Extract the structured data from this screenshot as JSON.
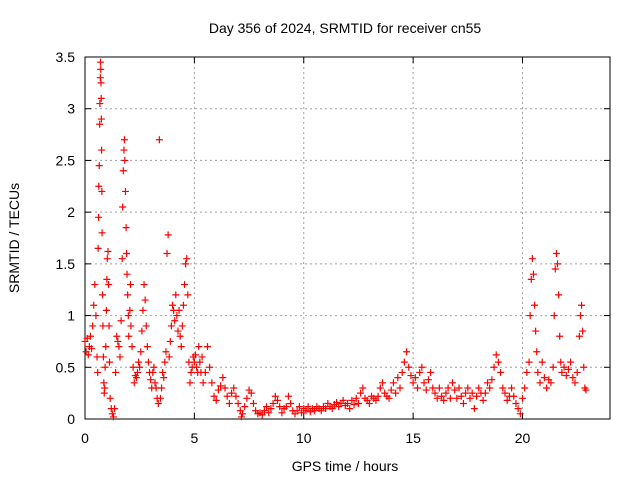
{
  "chart_data": {
    "type": "scatter",
    "title": "Day 356 of 2024, SRMTID for receiver cn55",
    "xlabel": "GPS time / hours",
    "ylabel": "SRMTID / TECUs",
    "xlim": [
      0,
      24
    ],
    "ylim": [
      0,
      3.5
    ],
    "x_ticks": [
      0,
      5,
      10,
      15,
      20
    ],
    "x_tick_labels": [
      "0",
      "5",
      "10",
      "15",
      "20"
    ],
    "y_ticks": [
      0,
      0.5,
      1,
      1.5,
      2,
      2.5,
      3,
      3.5
    ],
    "y_tick_labels": [
      "0",
      "0.5",
      "1",
      "1.5",
      "2",
      "2.5",
      "3",
      "3.5"
    ],
    "grid": true,
    "marker": "+",
    "marker_color": "#ff0000",
    "series": [
      {
        "name": "SRMTID",
        "points": [
          [
            0.0,
            0.75
          ],
          [
            0.05,
            0.65
          ],
          [
            0.1,
            0.78
          ],
          [
            0.15,
            0.62
          ],
          [
            0.2,
            0.7
          ],
          [
            0.25,
            0.8
          ],
          [
            0.3,
            0.68
          ],
          [
            0.35,
            0.9
          ],
          [
            0.4,
            1.1
          ],
          [
            0.45,
            1.3
          ],
          [
            0.5,
            1.0
          ],
          [
            0.55,
            0.6
          ],
          [
            0.58,
            0.45
          ],
          [
            0.6,
            1.65
          ],
          [
            0.62,
            1.95
          ],
          [
            0.63,
            2.25
          ],
          [
            0.65,
            2.45
          ],
          [
            0.67,
            2.85
          ],
          [
            0.68,
            3.05
          ],
          [
            0.7,
            3.3
          ],
          [
            0.71,
            3.45
          ],
          [
            0.72,
            3.38
          ],
          [
            0.73,
            3.25
          ],
          [
            0.74,
            3.1
          ],
          [
            0.75,
            2.9
          ],
          [
            0.76,
            2.6
          ],
          [
            0.77,
            2.2
          ],
          [
            0.78,
            1.8
          ],
          [
            0.8,
            1.2
          ],
          [
            0.82,
            0.9
          ],
          [
            0.84,
            0.6
          ],
          [
            0.86,
            0.35
          ],
          [
            0.88,
            0.25
          ],
          [
            0.9,
            0.3
          ],
          [
            0.92,
            0.5
          ],
          [
            0.95,
            0.7
          ],
          [
            0.98,
            1.05
          ],
          [
            1.0,
            1.35
          ],
          [
            1.02,
            1.55
          ],
          [
            1.05,
            1.62
          ],
          [
            1.08,
            1.3
          ],
          [
            1.1,
            0.9
          ],
          [
            1.12,
            0.55
          ],
          [
            1.15,
            0.2
          ],
          [
            1.2,
            0.1
          ],
          [
            1.25,
            0.05
          ],
          [
            1.3,
            0.02
          ],
          [
            1.35,
            0.1
          ],
          [
            1.4,
            0.45
          ],
          [
            1.45,
            0.8
          ],
          [
            1.5,
            0.75
          ],
          [
            1.55,
            0.7
          ],
          [
            1.6,
            0.6
          ],
          [
            1.65,
            0.95
          ],
          [
            1.7,
            1.55
          ],
          [
            1.72,
            2.05
          ],
          [
            1.75,
            2.4
          ],
          [
            1.78,
            2.6
          ],
          [
            1.8,
            2.7
          ],
          [
            1.82,
            2.5
          ],
          [
            1.85,
            2.2
          ],
          [
            1.88,
            1.85
          ],
          [
            1.9,
            1.6
          ],
          [
            1.92,
            1.4
          ],
          [
            1.95,
            1.2
          ],
          [
            1.98,
            1.0
          ],
          [
            2.0,
            0.8
          ],
          [
            2.05,
            1.05
          ],
          [
            2.08,
            1.3
          ],
          [
            2.1,
            0.9
          ],
          [
            2.15,
            0.7
          ],
          [
            2.2,
            0.5
          ],
          [
            2.25,
            0.35
          ],
          [
            2.3,
            0.42
          ],
          [
            2.35,
            0.4
          ],
          [
            2.4,
            0.45
          ],
          [
            2.45,
            0.55
          ],
          [
            2.5,
            0.5
          ],
          [
            2.55,
            0.65
          ],
          [
            2.6,
            0.85
          ],
          [
            2.65,
            1.05
          ],
          [
            2.7,
            1.3
          ],
          [
            2.75,
            1.15
          ],
          [
            2.8,
            0.9
          ],
          [
            2.85,
            0.7
          ],
          [
            2.9,
            0.55
          ],
          [
            2.95,
            0.45
          ],
          [
            3.0,
            0.38
          ],
          [
            3.05,
            0.3
          ],
          [
            3.1,
            0.45
          ],
          [
            3.15,
            0.5
          ],
          [
            3.2,
            0.35
          ],
          [
            3.25,
            0.3
          ],
          [
            3.3,
            0.2
          ],
          [
            3.35,
            0.15
          ],
          [
            3.4,
            2.7
          ],
          [
            3.45,
            0.2
          ],
          [
            3.5,
            0.3
          ],
          [
            3.55,
            0.45
          ],
          [
            3.6,
            0.4
          ],
          [
            3.65,
            0.55
          ],
          [
            3.7,
            0.65
          ],
          [
            3.75,
            1.6
          ],
          [
            3.8,
            1.78
          ],
          [
            3.85,
            0.6
          ],
          [
            3.9,
            0.75
          ],
          [
            3.95,
            0.9
          ],
          [
            4.0,
            1.1
          ],
          [
            4.05,
            1.05
          ],
          [
            4.1,
            0.95
          ],
          [
            4.15,
            1.2
          ],
          [
            4.2,
            1.0
          ],
          [
            4.25,
            0.85
          ],
          [
            4.3,
            1.05
          ],
          [
            4.35,
            0.8
          ],
          [
            4.4,
            0.7
          ],
          [
            4.45,
            0.9
          ],
          [
            4.5,
            1.1
          ],
          [
            4.55,
            1.3
          ],
          [
            4.6,
            1.5
          ],
          [
            4.65,
            1.55
          ],
          [
            4.7,
            1.2
          ],
          [
            4.75,
            0.55
          ],
          [
            4.8,
            0.35
          ],
          [
            4.85,
            0.45
          ],
          [
            4.9,
            0.5
          ],
          [
            4.95,
            0.6
          ],
          [
            5.0,
            0.55
          ],
          [
            5.05,
            0.62
          ],
          [
            5.1,
            0.5
          ],
          [
            5.15,
            0.45
          ],
          [
            5.2,
            0.7
          ],
          [
            5.25,
            0.55
          ],
          [
            5.3,
            0.45
          ],
          [
            5.35,
            0.6
          ],
          [
            5.4,
            0.35
          ],
          [
            5.5,
            0.45
          ],
          [
            5.6,
            0.7
          ],
          [
            5.7,
            0.5
          ],
          [
            5.8,
            0.35
          ],
          [
            5.9,
            0.22
          ],
          [
            6.0,
            0.18
          ],
          [
            6.1,
            0.28
          ],
          [
            6.2,
            0.32
          ],
          [
            6.3,
            0.4
          ],
          [
            6.4,
            0.3
          ],
          [
            6.5,
            0.22
          ],
          [
            6.6,
            0.15
          ],
          [
            6.7,
            0.25
          ],
          [
            6.8,
            0.3
          ],
          [
            6.9,
            0.22
          ],
          [
            7.0,
            0.15
          ],
          [
            7.1,
            0.08
          ],
          [
            7.15,
            0.02
          ],
          [
            7.2,
            0.05
          ],
          [
            7.3,
            0.12
          ],
          [
            7.4,
            0.2
          ],
          [
            7.5,
            0.28
          ],
          [
            7.6,
            0.25
          ],
          [
            7.7,
            0.15
          ],
          [
            7.8,
            0.08
          ],
          [
            7.9,
            0.05
          ],
          [
            8.0,
            0.06
          ],
          [
            8.1,
            0.04
          ],
          [
            8.2,
            0.08
          ],
          [
            8.3,
            0.12
          ],
          [
            8.4,
            0.06
          ],
          [
            8.5,
            0.1
          ],
          [
            8.6,
            0.15
          ],
          [
            8.7,
            0.22
          ],
          [
            8.8,
            0.18
          ],
          [
            8.9,
            0.12
          ],
          [
            9.0,
            0.06
          ],
          [
            9.1,
            0.1
          ],
          [
            9.2,
            0.12
          ],
          [
            9.3,
            0.22
          ],
          [
            9.4,
            0.15
          ],
          [
            9.5,
            0.08
          ],
          [
            9.6,
            0.05
          ],
          [
            9.7,
            0.08
          ],
          [
            9.8,
            0.12
          ],
          [
            9.9,
            0.06
          ],
          [
            10.0,
            0.1
          ],
          [
            10.1,
            0.08
          ],
          [
            10.2,
            0.12
          ],
          [
            10.3,
            0.07
          ],
          [
            10.4,
            0.1
          ],
          [
            10.5,
            0.08
          ],
          [
            10.6,
            0.12
          ],
          [
            10.7,
            0.1
          ],
          [
            10.8,
            0.08
          ],
          [
            10.9,
            0.12
          ],
          [
            11.0,
            0.1
          ],
          [
            11.1,
            0.15
          ],
          [
            11.2,
            0.12
          ],
          [
            11.3,
            0.1
          ],
          [
            11.4,
            0.14
          ],
          [
            11.5,
            0.16
          ],
          [
            11.6,
            0.12
          ],
          [
            11.7,
            0.15
          ],
          [
            11.8,
            0.18
          ],
          [
            11.9,
            0.13
          ],
          [
            12.0,
            0.15
          ],
          [
            12.1,
            0.1
          ],
          [
            12.2,
            0.18
          ],
          [
            12.3,
            0.14
          ],
          [
            12.4,
            0.2
          ],
          [
            12.5,
            0.15
          ],
          [
            12.6,
            0.25
          ],
          [
            12.7,
            0.3
          ],
          [
            12.8,
            0.2
          ],
          [
            12.9,
            0.18
          ],
          [
            13.0,
            0.15
          ],
          [
            13.1,
            0.22
          ],
          [
            13.2,
            0.2
          ],
          [
            13.3,
            0.18
          ],
          [
            13.4,
            0.22
          ],
          [
            13.5,
            0.3
          ],
          [
            13.6,
            0.35
          ],
          [
            13.7,
            0.25
          ],
          [
            13.8,
            0.22
          ],
          [
            13.9,
            0.2
          ],
          [
            14.0,
            0.28
          ],
          [
            14.1,
            0.35
          ],
          [
            14.2,
            0.25
          ],
          [
            14.3,
            0.4
          ],
          [
            14.4,
            0.3
          ],
          [
            14.5,
            0.45
          ],
          [
            14.6,
            0.55
          ],
          [
            14.7,
            0.65
          ],
          [
            14.8,
            0.5
          ],
          [
            14.9,
            0.42
          ],
          [
            15.0,
            0.35
          ],
          [
            15.1,
            0.4
          ],
          [
            15.2,
            0.3
          ],
          [
            15.3,
            0.45
          ],
          [
            15.4,
            0.5
          ],
          [
            15.5,
            0.35
          ],
          [
            15.6,
            0.28
          ],
          [
            15.7,
            0.38
          ],
          [
            15.8,
            0.45
          ],
          [
            15.9,
            0.3
          ],
          [
            16.0,
            0.25
          ],
          [
            16.1,
            0.2
          ],
          [
            16.2,
            0.3
          ],
          [
            16.3,
            0.22
          ],
          [
            16.4,
            0.18
          ],
          [
            16.5,
            0.25
          ],
          [
            16.6,
            0.3
          ],
          [
            16.7,
            0.2
          ],
          [
            16.8,
            0.35
          ],
          [
            16.9,
            0.28
          ],
          [
            17.0,
            0.2
          ],
          [
            17.1,
            0.3
          ],
          [
            17.2,
            0.22
          ],
          [
            17.3,
            0.15
          ],
          [
            17.4,
            0.25
          ],
          [
            17.5,
            0.3
          ],
          [
            17.6,
            0.2
          ],
          [
            17.7,
            0.25
          ],
          [
            17.8,
            0.1
          ],
          [
            17.9,
            0.22
          ],
          [
            18.0,
            0.3
          ],
          [
            18.1,
            0.25
          ],
          [
            18.2,
            0.18
          ],
          [
            18.3,
            0.25
          ],
          [
            18.4,
            0.35
          ],
          [
            18.5,
            0.3
          ],
          [
            18.6,
            0.38
          ],
          [
            18.7,
            0.5
          ],
          [
            18.8,
            0.62
          ],
          [
            18.9,
            0.55
          ],
          [
            19.0,
            0.45
          ],
          [
            19.1,
            0.3
          ],
          [
            19.2,
            0.25
          ],
          [
            19.3,
            0.18
          ],
          [
            19.4,
            0.22
          ],
          [
            19.5,
            0.3
          ],
          [
            19.6,
            0.22
          ],
          [
            19.7,
            0.15
          ],
          [
            19.8,
            0.1
          ],
          [
            19.9,
            0.05
          ],
          [
            20.0,
            0.2
          ],
          [
            20.1,
            0.3
          ],
          [
            20.2,
            0.45
          ],
          [
            20.3,
            0.55
          ],
          [
            20.35,
            1.0
          ],
          [
            20.4,
            1.35
          ],
          [
            20.45,
            1.55
          ],
          [
            20.5,
            1.4
          ],
          [
            20.55,
            1.1
          ],
          [
            20.6,
            0.85
          ],
          [
            20.65,
            0.65
          ],
          [
            20.7,
            0.45
          ],
          [
            20.8,
            0.35
          ],
          [
            20.9,
            0.55
          ],
          [
            21.0,
            0.4
          ],
          [
            21.1,
            0.3
          ],
          [
            21.2,
            0.38
          ],
          [
            21.3,
            0.35
          ],
          [
            21.4,
            0.5
          ],
          [
            21.45,
            1.0
          ],
          [
            21.5,
            1.45
          ],
          [
            21.55,
            1.6
          ],
          [
            21.6,
            1.5
          ],
          [
            21.65,
            1.2
          ],
          [
            21.7,
            0.8
          ],
          [
            21.75,
            0.55
          ],
          [
            21.8,
            0.45
          ],
          [
            21.9,
            0.5
          ],
          [
            22.0,
            0.42
          ],
          [
            22.1,
            0.48
          ],
          [
            22.2,
            0.55
          ],
          [
            22.3,
            0.4
          ],
          [
            22.4,
            0.35
          ],
          [
            22.5,
            0.45
          ],
          [
            22.6,
            0.8
          ],
          [
            22.65,
            1.0
          ],
          [
            22.7,
            1.1
          ],
          [
            22.75,
            0.85
          ],
          [
            22.8,
            0.5
          ],
          [
            22.85,
            0.3
          ],
          [
            22.9,
            0.28
          ]
        ]
      }
    ]
  }
}
